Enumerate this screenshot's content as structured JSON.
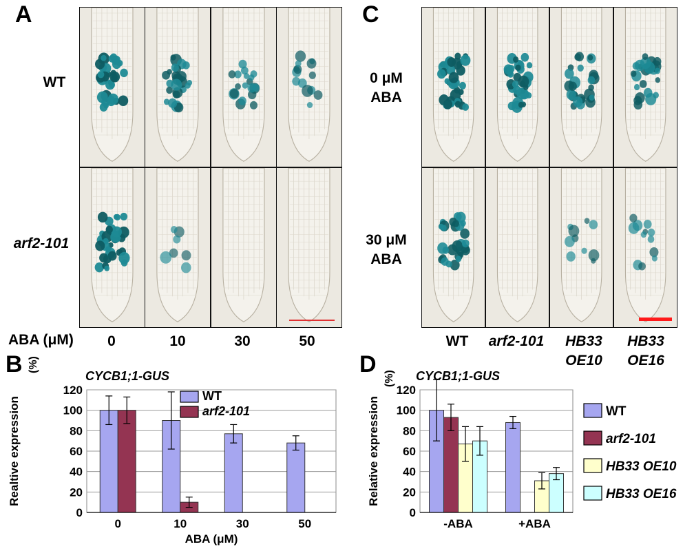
{
  "panels": {
    "A": {
      "letter": "A",
      "rows": [
        "WT",
        "arf2-101"
      ],
      "columns": [
        "0",
        "10",
        "30",
        "50"
      ],
      "axis_prefix": "ABA (μM)",
      "staining": [
        [
          1.0,
          0.75,
          0.55,
          0.4
        ],
        [
          1.0,
          0.2,
          0.0,
          0.0
        ]
      ],
      "scalebar_color": "#e03131"
    },
    "C": {
      "letter": "C",
      "rows": [
        [
          "0 μM",
          "ABA"
        ],
        [
          "30 μM",
          "ABA"
        ]
      ],
      "columns": [
        [
          "WT"
        ],
        [
          "arf2-101"
        ],
        [
          "HB33",
          "OE10"
        ],
        [
          "HB33",
          "OE16"
        ]
      ],
      "staining": [
        [
          1.0,
          0.95,
          0.75,
          0.7
        ],
        [
          0.85,
          0.0,
          0.3,
          0.35
        ]
      ],
      "scalebar_color": "#ff1a1a"
    },
    "B": {
      "letter": "B",
      "gene": "CYCB1;1-GUS",
      "yunit": "(%)"
    },
    "D": {
      "letter": "D",
      "gene": "CYCB1;1-GUS",
      "yunit": "(%)"
    }
  },
  "chart_data": [
    {
      "type": "bar",
      "panel": "B",
      "title": "CYCB1;1-GUS",
      "xlabel": "ABA (μM)",
      "ylabel": "Realtive expression",
      "ylim": [
        0,
        120
      ],
      "yticks": [
        0,
        20,
        40,
        60,
        80,
        100,
        120
      ],
      "categories": [
        "0",
        "10",
        "30",
        "50"
      ],
      "legend_position": "top-center",
      "series": [
        {
          "name": "WT",
          "color": "#a6a6f0",
          "values": [
            100,
            90,
            77,
            68
          ],
          "errors": [
            14,
            28,
            9,
            7
          ]
        },
        {
          "name": "arf2-101",
          "color": "#943452",
          "values": [
            100,
            10,
            null,
            null
          ],
          "errors": [
            13,
            5,
            null,
            null
          ]
        }
      ]
    },
    {
      "type": "bar",
      "panel": "D",
      "title": "CYCB1;1-GUS",
      "xlabel": "",
      "ylabel": "Relative expression",
      "ylim": [
        0,
        120
      ],
      "yticks": [
        0,
        20,
        40,
        60,
        80,
        100,
        120
      ],
      "categories": [
        "-ABA",
        "+ABA"
      ],
      "legend_position": "right",
      "series": [
        {
          "name": "WT",
          "color": "#a6a6f0",
          "values": [
            100,
            88
          ],
          "errors": [
            30,
            6
          ]
        },
        {
          "name": "arf2-101",
          "color": "#943452",
          "values": [
            93,
            null
          ],
          "errors": [
            13,
            null
          ]
        },
        {
          "name": "HB33 OE10",
          "color": "#ffffcc",
          "values": [
            67,
            31
          ],
          "errors": [
            17,
            8
          ]
        },
        {
          "name": "HB33 OE16",
          "color": "#ccffff",
          "values": [
            70,
            38
          ],
          "errors": [
            14,
            6
          ]
        }
      ]
    }
  ]
}
